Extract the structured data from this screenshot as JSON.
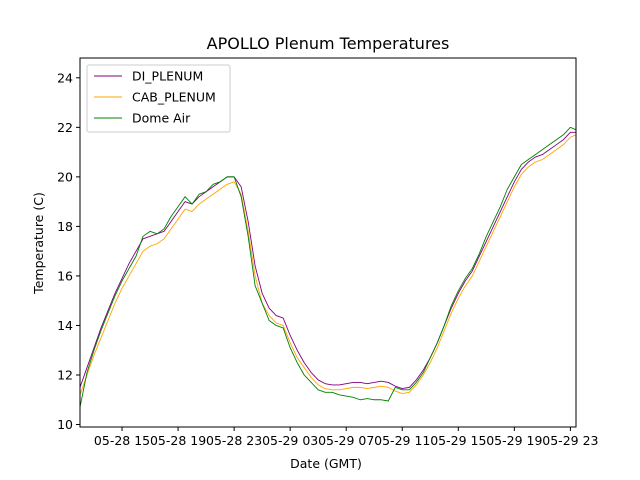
{
  "chart_data": {
    "type": "line",
    "title": "APOLLO Plenum Temperatures",
    "xlabel": "Date (GMT)",
    "ylabel": "Temperature (C)",
    "x_unit": "hours since 2024-05-28 12:00 GMT",
    "xlim": [
      0,
      35.4
    ],
    "ylim": [
      9.9,
      24.8
    ],
    "x_ticks": [
      {
        "value": 3,
        "label": "05-28 15"
      },
      {
        "value": 7,
        "label": "05-28 19"
      },
      {
        "value": 11,
        "label": "05-28 23"
      },
      {
        "value": 15,
        "label": "05-29 03"
      },
      {
        "value": 19,
        "label": "05-29 07"
      },
      {
        "value": 23,
        "label": "05-29 11"
      },
      {
        "value": 27,
        "label": "05-29 15"
      },
      {
        "value": 31,
        "label": "05-29 19"
      },
      {
        "value": 35,
        "label": "05-29 23"
      }
    ],
    "y_ticks": [
      {
        "value": 10,
        "label": "10"
      },
      {
        "value": 12,
        "label": "12"
      },
      {
        "value": 14,
        "label": "14"
      },
      {
        "value": 16,
        "label": "16"
      },
      {
        "value": 18,
        "label": "18"
      },
      {
        "value": 20,
        "label": "20"
      },
      {
        "value": 22,
        "label": "22"
      },
      {
        "value": 24,
        "label": "24"
      }
    ],
    "grid": false,
    "legend_position": "top-left",
    "series": [
      {
        "name": "DI_PLENUM",
        "color": "#800080",
        "x": [
          0,
          0.5,
          1,
          1.5,
          2,
          2.5,
          3,
          3.5,
          4,
          4.5,
          5,
          5.5,
          6,
          6.5,
          7,
          7.5,
          8,
          8.5,
          9,
          9.5,
          10,
          10.5,
          11,
          11.5,
          12,
          12.5,
          13,
          13.5,
          14,
          14.5,
          15,
          15.5,
          16,
          16.5,
          17,
          17.5,
          18,
          18.5,
          19,
          19.5,
          20,
          20.5,
          21,
          21.5,
          22,
          22.5,
          23,
          23.5,
          24,
          24.5,
          25,
          25.5,
          26,
          26.5,
          27,
          27.5,
          28,
          28.5,
          29,
          29.5,
          30,
          30.5,
          31,
          31.5,
          32,
          32.5,
          33,
          33.5,
          34,
          34.5,
          35,
          35.4
        ],
        "y": [
          11.5,
          12.3,
          13.1,
          13.9,
          14.6,
          15.3,
          15.9,
          16.5,
          17.0,
          17.5,
          17.6,
          17.7,
          17.8,
          18.2,
          18.6,
          19.0,
          18.9,
          19.2,
          19.4,
          19.6,
          19.8,
          20.0,
          20.0,
          19.6,
          18.2,
          16.4,
          15.3,
          14.7,
          14.4,
          14.3,
          13.6,
          13.0,
          12.5,
          12.1,
          11.8,
          11.65,
          11.6,
          11.6,
          11.65,
          11.7,
          11.7,
          11.65,
          11.7,
          11.75,
          11.7,
          11.55,
          11.45,
          11.5,
          11.8,
          12.2,
          12.7,
          13.3,
          14.0,
          14.7,
          15.3,
          15.8,
          16.2,
          16.8,
          17.4,
          18.0,
          18.6,
          19.2,
          19.8,
          20.3,
          20.6,
          20.8,
          20.9,
          21.1,
          21.3,
          21.5,
          21.8,
          21.8
        ]
      },
      {
        "name": "CAB_PLENUM",
        "color": "#ffa500",
        "x": [
          0,
          0.5,
          1,
          1.5,
          2,
          2.5,
          3,
          3.5,
          4,
          4.5,
          5,
          5.5,
          6,
          6.5,
          7,
          7.5,
          8,
          8.5,
          9,
          9.5,
          10,
          10.5,
          11,
          11.5,
          12,
          12.5,
          13,
          13.5,
          14,
          14.5,
          15,
          15.5,
          16,
          16.5,
          17,
          17.5,
          18,
          18.5,
          19,
          19.5,
          20,
          20.5,
          21,
          21.5,
          22,
          22.5,
          23,
          23.5,
          24,
          24.5,
          25,
          25.5,
          26,
          26.5,
          27,
          27.5,
          28,
          28.5,
          29,
          29.5,
          30,
          30.5,
          31,
          31.5,
          32,
          32.5,
          33,
          33.5,
          34,
          34.5,
          35,
          35.4
        ],
        "y": [
          11.2,
          12.0,
          12.8,
          13.5,
          14.2,
          14.9,
          15.5,
          16.0,
          16.5,
          17.0,
          17.2,
          17.3,
          17.5,
          17.9,
          18.3,
          18.7,
          18.6,
          18.9,
          19.1,
          19.3,
          19.5,
          19.7,
          19.8,
          19.3,
          17.8,
          16.0,
          14.9,
          14.4,
          14.1,
          14.0,
          13.3,
          12.7,
          12.3,
          11.9,
          11.6,
          11.45,
          11.4,
          11.4,
          11.45,
          11.5,
          11.5,
          11.45,
          11.5,
          11.55,
          11.5,
          11.35,
          11.25,
          11.3,
          11.6,
          12.0,
          12.5,
          13.1,
          13.8,
          14.5,
          15.1,
          15.6,
          16.0,
          16.6,
          17.2,
          17.8,
          18.4,
          19.0,
          19.6,
          20.1,
          20.4,
          20.6,
          20.7,
          20.9,
          21.1,
          21.3,
          21.6,
          21.7
        ]
      },
      {
        "name": "Dome Air",
        "color": "#008000",
        "x": [
          0,
          0.5,
          1,
          1.5,
          2,
          2.5,
          3,
          3.5,
          4,
          4.5,
          5,
          5.5,
          6,
          6.5,
          7,
          7.5,
          8,
          8.5,
          9,
          9.5,
          10,
          10.5,
          11,
          11.5,
          12,
          12.5,
          13,
          13.5,
          14,
          14.5,
          15,
          15.5,
          16,
          16.5,
          17,
          17.5,
          18,
          18.5,
          19,
          19.5,
          20,
          20.5,
          21,
          21.5,
          22,
          22.5,
          23,
          23.5,
          24,
          24.5,
          25,
          25.5,
          26,
          26.5,
          27,
          27.5,
          28,
          28.5,
          29,
          29.5,
          30,
          30.5,
          31,
          31.5,
          32,
          32.5,
          33,
          33.5,
          34,
          34.5,
          35,
          35.4
        ],
        "y": [
          10.7,
          12.1,
          13.0,
          13.8,
          14.5,
          15.2,
          15.8,
          16.3,
          16.8,
          17.6,
          17.8,
          17.7,
          17.9,
          18.4,
          18.8,
          19.2,
          18.9,
          19.3,
          19.4,
          19.7,
          19.8,
          20.0,
          20.0,
          19.2,
          17.6,
          15.6,
          14.9,
          14.2,
          14.0,
          13.9,
          13.1,
          12.5,
          12.0,
          11.7,
          11.4,
          11.3,
          11.3,
          11.2,
          11.15,
          11.1,
          11.0,
          11.05,
          11.0,
          11.0,
          10.95,
          11.5,
          11.4,
          11.4,
          11.7,
          12.1,
          12.7,
          13.3,
          14.0,
          14.8,
          15.4,
          15.9,
          16.3,
          16.9,
          17.6,
          18.2,
          18.8,
          19.5,
          20.0,
          20.5,
          20.7,
          20.9,
          21.1,
          21.3,
          21.5,
          21.7,
          22.0,
          21.9
        ]
      }
    ]
  }
}
